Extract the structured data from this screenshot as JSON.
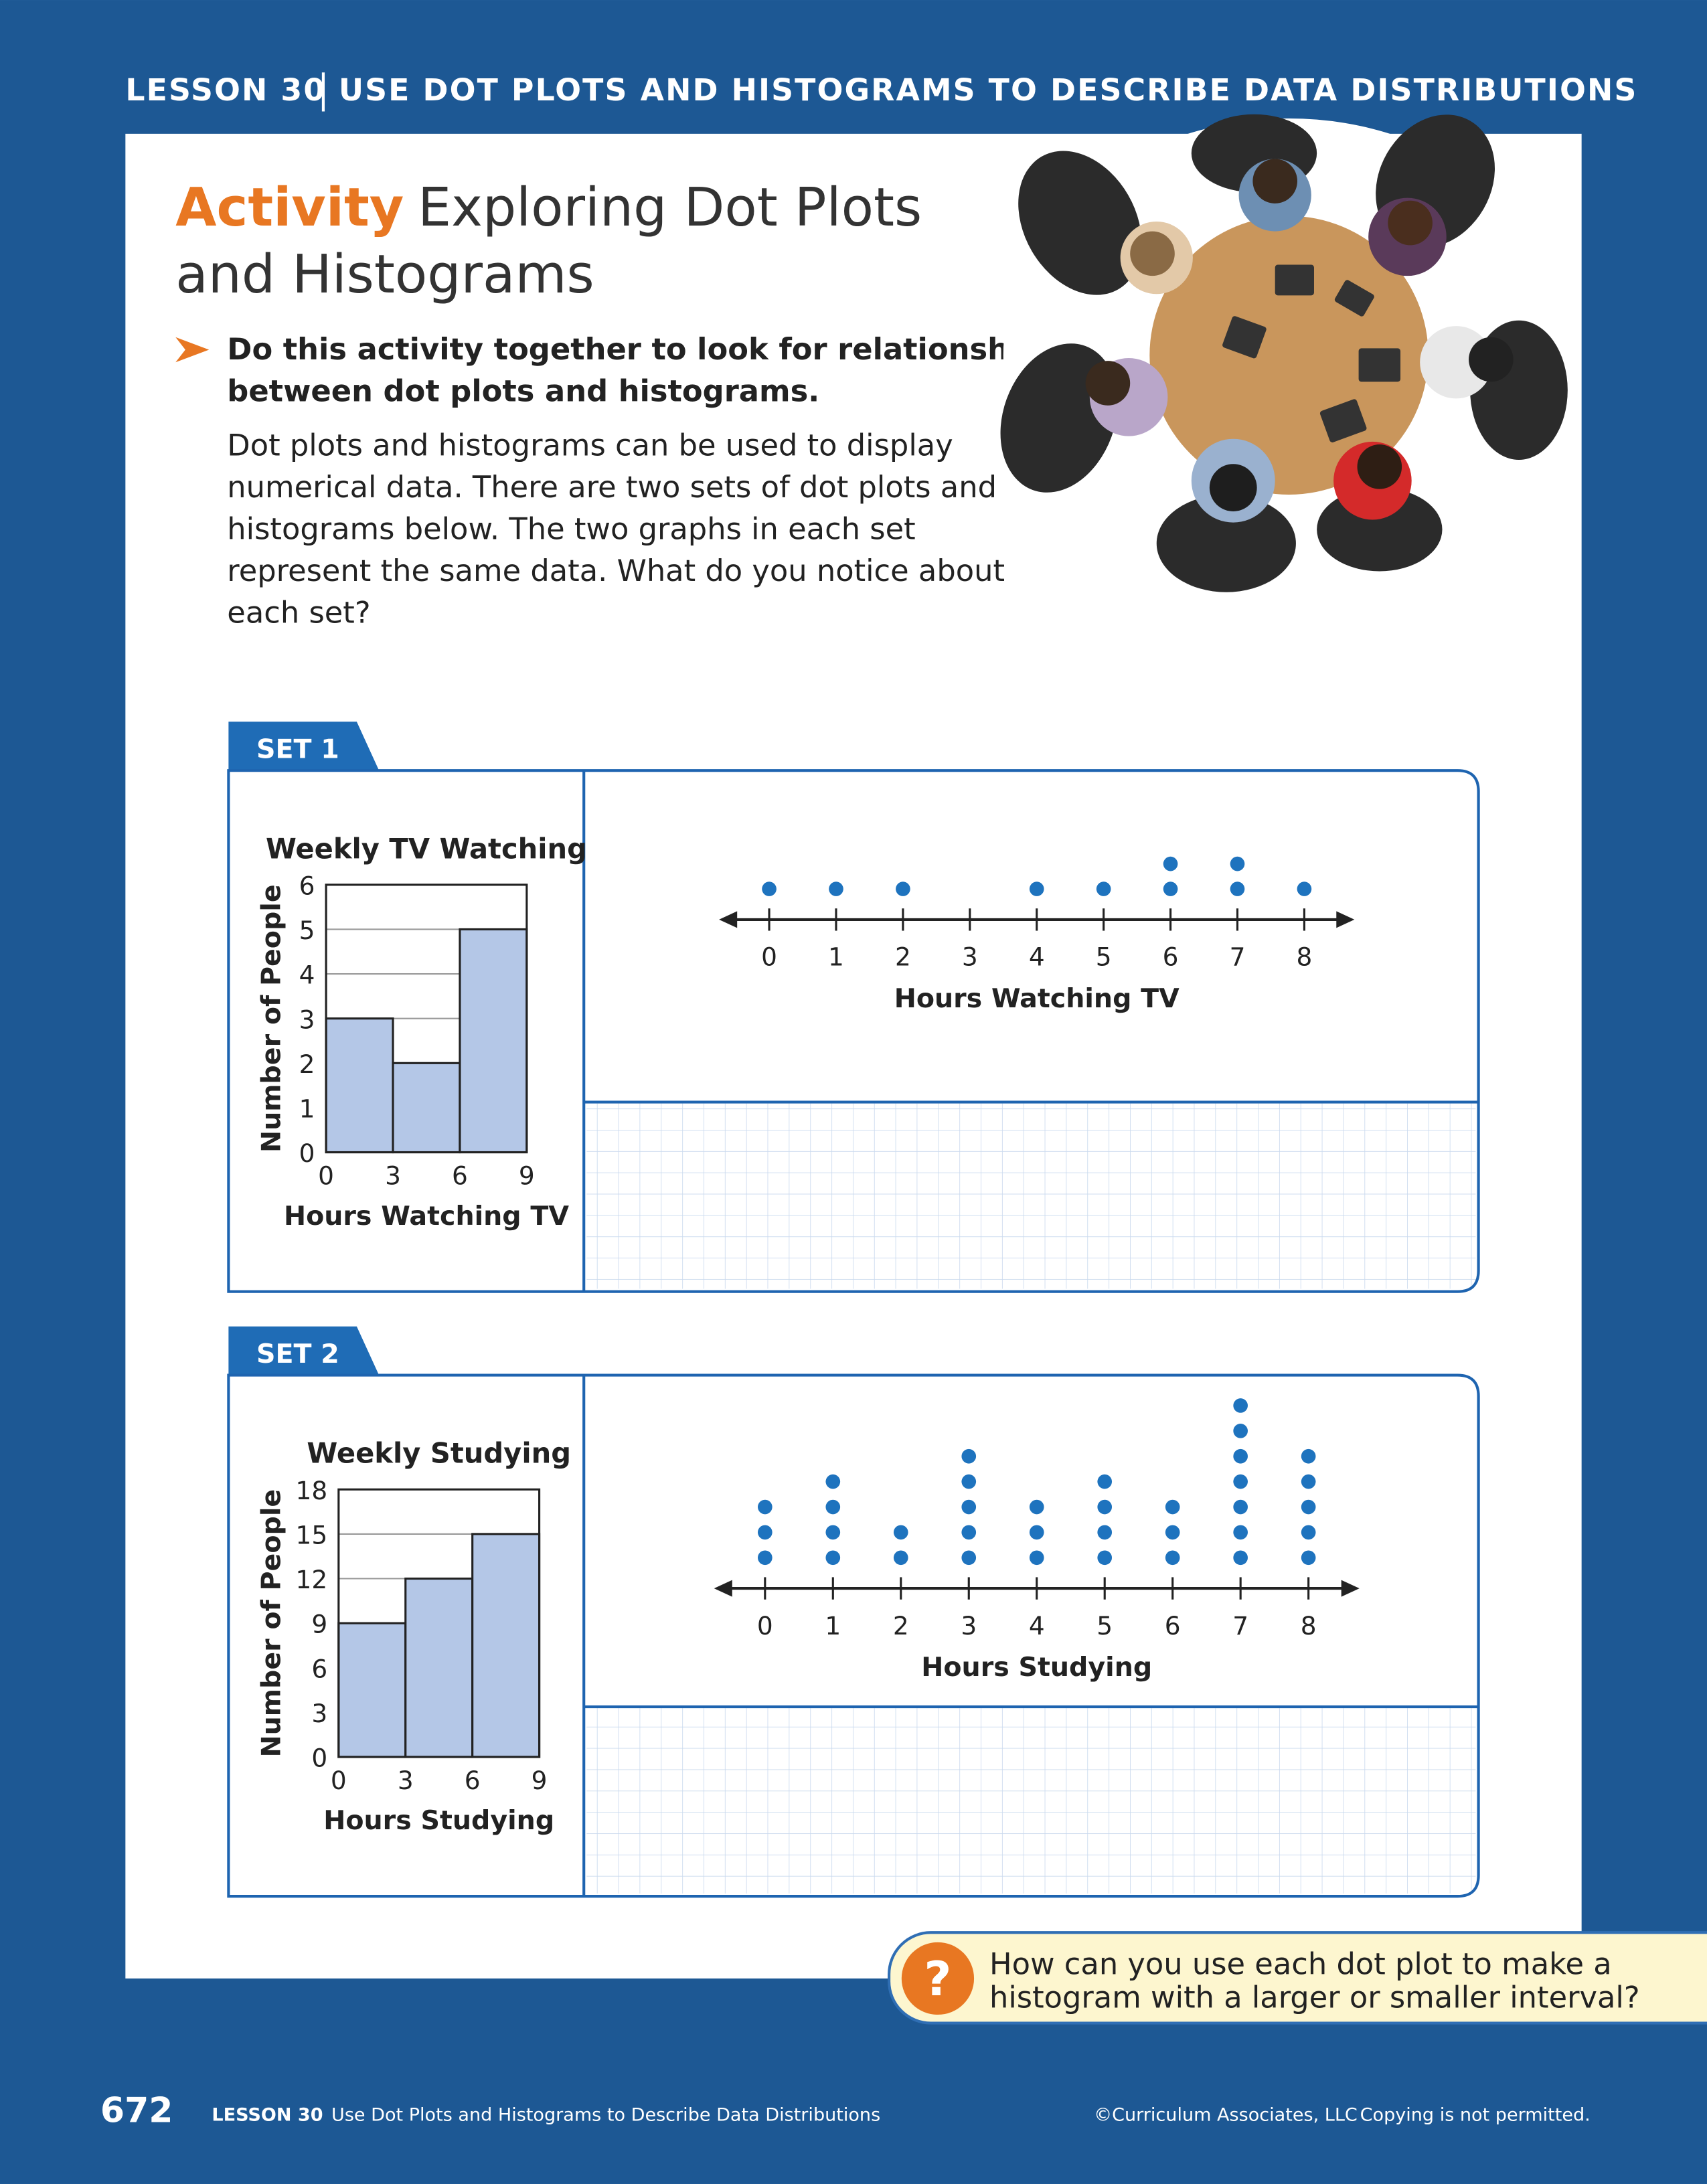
{
  "header": {
    "lesson": "LESSON 30",
    "title": "USE DOT PLOTS AND HISTOGRAMS TO DESCRIBE DATA DISTRIBUTIONS"
  },
  "activity": {
    "label": "Activity",
    "title_lines": [
      "Exploring Dot Plots",
      "and Histograms"
    ],
    "instruction_lines": [
      "Do this activity together to look for relationships",
      "between dot plots and histograms."
    ],
    "body_lines": [
      "Dot plots and histograms can be used to display",
      "numerical data. There are two sets of dot plots and",
      "histograms below. The two graphs in each set",
      "represent the same data. What do you notice about",
      "each set?"
    ]
  },
  "sets": [
    {
      "label": "SET 1",
      "histogram": {
        "type": "histogram",
        "title": "Weekly TV Watching",
        "bins": [
          0,
          3,
          6,
          9
        ],
        "counts": [
          3,
          2,
          5
        ],
        "ylim": [
          0,
          6
        ],
        "yticks": [
          0,
          1,
          2,
          3,
          4,
          5,
          6
        ],
        "xlabel": "Hours Watching TV",
        "ylabel": "Number of People",
        "color": "#b4c7e7"
      },
      "dot_plot": {
        "type": "dot",
        "x": [
          0,
          1,
          2,
          3,
          4,
          5,
          6,
          7,
          8
        ],
        "counts": [
          1,
          1,
          1,
          0,
          1,
          1,
          2,
          2,
          1
        ],
        "xlim": [
          -0.75,
          8.75
        ],
        "xlabel": "Hours Watching TV",
        "color": "#1e73be"
      }
    },
    {
      "label": "SET 2",
      "histogram": {
        "type": "histogram",
        "title": "Weekly Studying",
        "bins": [
          0,
          3,
          6,
          9
        ],
        "counts": [
          9,
          12,
          15
        ],
        "ylim": [
          0,
          18
        ],
        "yticks": [
          0,
          3,
          6,
          9,
          12,
          15,
          18
        ],
        "xlabel": "Hours Studying",
        "ylabel": "Number of People",
        "color": "#b4c7e7"
      },
      "dot_plot": {
        "type": "dot",
        "x": [
          0,
          1,
          2,
          3,
          4,
          5,
          6,
          7,
          8
        ],
        "counts": [
          3,
          4,
          2,
          5,
          3,
          4,
          3,
          7,
          5
        ],
        "xlim": [
          -0.75,
          8.75
        ],
        "xlabel": "Hours Studying",
        "color": "#1e73be"
      }
    }
  ],
  "question_lines": [
    "How can you use each dot plot to make a",
    "histogram with a larger or smaller interval?"
  ],
  "footer": {
    "page": "672",
    "lesson": "LESSON 30",
    "title": "Use Dot Plots and Histograms to Describe Data Distributions",
    "copyright": "©Curriculum Associates, LLC",
    "notice": "Copying is not permitted."
  }
}
